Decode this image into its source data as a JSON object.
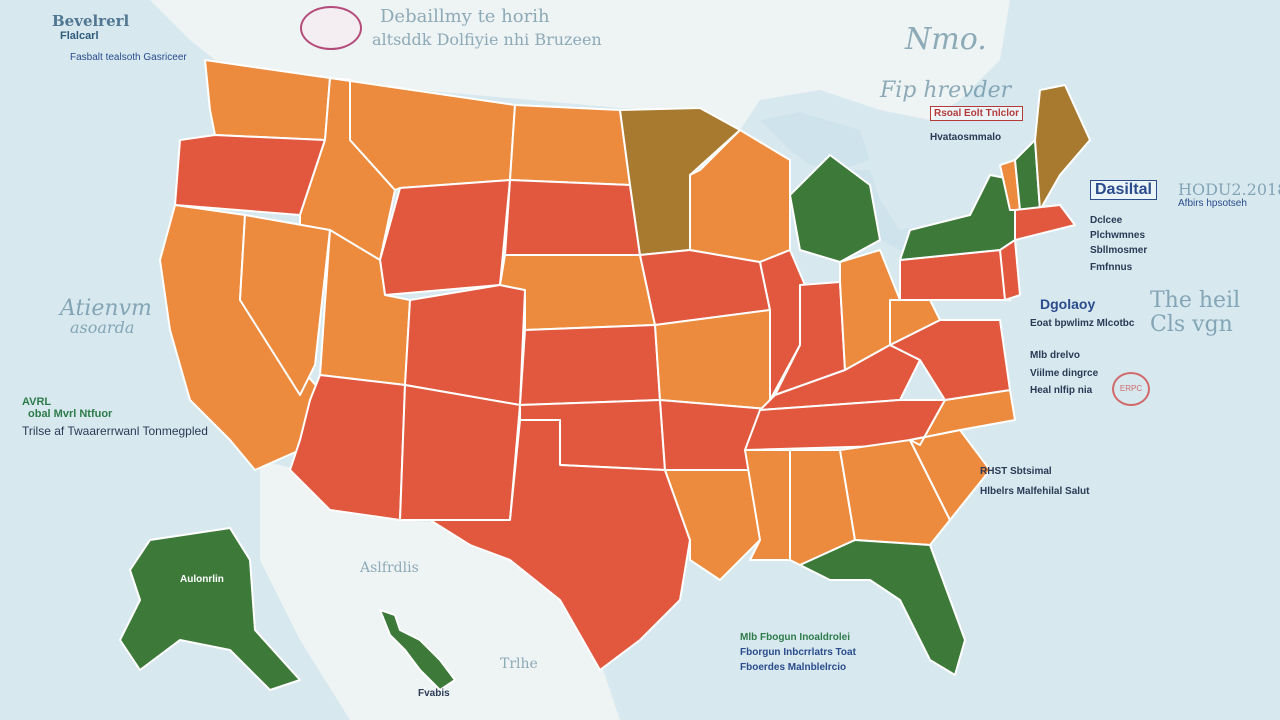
{
  "colors": {
    "ocean": "#d7e8ef",
    "land_bg": "#eef3f4",
    "red": "#e2583e",
    "orange": "#ec8a3d",
    "green": "#3d7a3a",
    "olive": "#a87a2f",
    "border": "#ffffff"
  },
  "header": {
    "title_left": "Bevelrerl",
    "subtitle_left": "Flalcarl",
    "tagline_left": "Fasbalt tealsoth Gasriceer",
    "title_center": "Debaillmy te horih",
    "subtitle_center": "altsddk Dolfiyie nhi Bruzeen",
    "script_right": "Nmo.",
    "script_right_2": "Fip hrevder"
  },
  "right_panel": {
    "box1": "Rsoal Eolt Tnlclor",
    "box2": "Hvataosmmalo",
    "hosp_title": "Dasiltal",
    "hosp_code": "HODU2.2018",
    "hosp_sub": "Afbirs hpsotseh",
    "list": [
      "Dclcee",
      "Plchwmnes",
      "Sbllmosmer",
      "Fmfnnus"
    ],
    "group_title": "Dgolaoy",
    "group_items": [
      "Eoat bpwlimz Mlcotbc",
      "Mlb drelvo",
      "Viilme dingrce",
      "Heal nlfip nia"
    ],
    "stamp": "ERPC",
    "script_right": "The heil",
    "script_right_2": "Cls vgn"
  },
  "left_panel": {
    "code": "AVRL",
    "legend_title": "obal Mvrl Ntfuor",
    "legend_line": "Trilse af Twaarerrwanl Tonmegpled",
    "script_1": "Atienvm",
    "script_2": "asoarda"
  },
  "bottom": {
    "south_1": "RHST Sbtsimal",
    "south_2": "Hlbelrs Malfehilal Salut",
    "gulf_1": "Mlb Fbogun Inoaldrolei",
    "gulf_2": "Fborgun Inbcrrlatrs Toat",
    "gulf_3": "Fboerdes Malnblelrcio",
    "alaska_1": "Aslfrdlis",
    "hawaii_1": "Fvabis",
    "alaska_label": "Aulonrlin",
    "mexico": "Trlhe"
  },
  "map": {
    "states": [
      {
        "name": "WA",
        "fill": "orange"
      },
      {
        "name": "OR",
        "fill": "red"
      },
      {
        "name": "CA",
        "fill": "orange"
      },
      {
        "name": "ID",
        "fill": "orange"
      },
      {
        "name": "NV",
        "fill": "orange"
      },
      {
        "name": "MT",
        "fill": "orange"
      },
      {
        "name": "WY",
        "fill": "red"
      },
      {
        "name": "UT",
        "fill": "orange"
      },
      {
        "name": "AZ",
        "fill": "red"
      },
      {
        "name": "CO",
        "fill": "red"
      },
      {
        "name": "NM",
        "fill": "red"
      },
      {
        "name": "ND",
        "fill": "orange"
      },
      {
        "name": "SD",
        "fill": "red"
      },
      {
        "name": "NE",
        "fill": "orange"
      },
      {
        "name": "KS",
        "fill": "red"
      },
      {
        "name": "OK",
        "fill": "red"
      },
      {
        "name": "TX",
        "fill": "red"
      },
      {
        "name": "MN",
        "fill": "olive"
      },
      {
        "name": "IA",
        "fill": "red"
      },
      {
        "name": "MO",
        "fill": "orange"
      },
      {
        "name": "AR",
        "fill": "red"
      },
      {
        "name": "LA",
        "fill": "orange"
      },
      {
        "name": "WI",
        "fill": "orange"
      },
      {
        "name": "IL",
        "fill": "red"
      },
      {
        "name": "MI",
        "fill": "green"
      },
      {
        "name": "IN",
        "fill": "red"
      },
      {
        "name": "OH",
        "fill": "orange"
      },
      {
        "name": "KY",
        "fill": "red"
      },
      {
        "name": "TN",
        "fill": "red"
      },
      {
        "name": "MS",
        "fill": "orange"
      },
      {
        "name": "AL",
        "fill": "orange"
      },
      {
        "name": "GA",
        "fill": "orange"
      },
      {
        "name": "FL",
        "fill": "green"
      },
      {
        "name": "SC",
        "fill": "orange"
      },
      {
        "name": "NC",
        "fill": "orange"
      },
      {
        "name": "VA",
        "fill": "red"
      },
      {
        "name": "WV",
        "fill": "orange"
      },
      {
        "name": "PA",
        "fill": "red"
      },
      {
        "name": "NY",
        "fill": "green"
      },
      {
        "name": "VT",
        "fill": "orange"
      },
      {
        "name": "NH",
        "fill": "green"
      },
      {
        "name": "ME",
        "fill": "olive"
      },
      {
        "name": "MA",
        "fill": "red"
      },
      {
        "name": "NJ",
        "fill": "red"
      },
      {
        "name": "AK",
        "fill": "green"
      },
      {
        "name": "HI",
        "fill": "green"
      }
    ]
  }
}
